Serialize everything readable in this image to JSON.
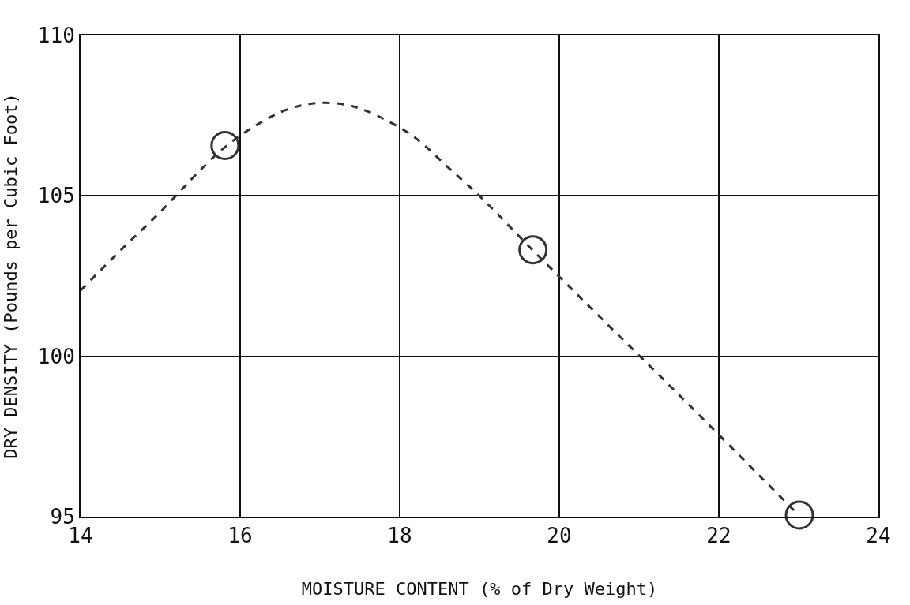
{
  "chart_data": {
    "type": "line",
    "xlabel": "MOISTURE CONTENT (% of Dry Weight)",
    "ylabel": "DRY DENSITY (Pounds per Cubic Foot)",
    "xlim": [
      14,
      24
    ],
    "xticks": [
      14,
      16,
      18,
      20,
      22,
      24
    ],
    "ylim": [
      95,
      110
    ],
    "yticks": [
      95,
      100,
      105,
      110
    ],
    "grid": true,
    "series": [
      {
        "color": "#333333",
        "line_style": "dashed",
        "marker": "none",
        "x": [
          14,
          14.5,
          15,
          15.5,
          15.8,
          16.2,
          16.6,
          17.0,
          17.4,
          17.8,
          18.2,
          18.6,
          19.0,
          19.67,
          20.5,
          21.5,
          22.5,
          23.0
        ],
        "values": [
          102.05,
          103.3,
          104.5,
          105.8,
          106.5,
          107.2,
          107.7,
          107.9,
          107.8,
          107.4,
          106.8,
          105.9,
          105.0,
          103.3,
          101.25,
          98.8,
          96.3,
          95.05
        ]
      },
      {
        "type": "scatter",
        "color": "#333333",
        "marker": "circle",
        "x": [
          15.81,
          19.67,
          23.01
        ],
        "values": [
          106.57,
          103.32,
          95.05
        ]
      }
    ]
  }
}
